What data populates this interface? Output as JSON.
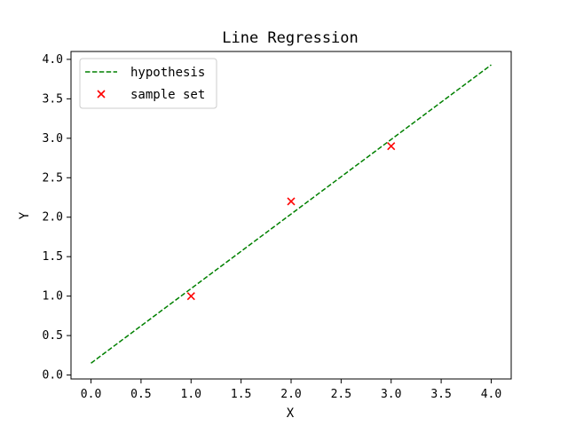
{
  "chart_data": {
    "type": "line",
    "title": "Line Regression",
    "xlabel": "X",
    "ylabel": "Y",
    "xlim": [
      -0.2,
      4.2
    ],
    "ylim": [
      -0.05,
      4.1
    ],
    "x_ticks": [
      0.0,
      0.5,
      1.0,
      1.5,
      2.0,
      2.5,
      3.0,
      3.5,
      4.0
    ],
    "x_tick_labels": [
      "0.0",
      "0.5",
      "1.0",
      "1.5",
      "2.0",
      "2.5",
      "3.0",
      "3.5",
      "4.0"
    ],
    "y_ticks": [
      0.0,
      0.5,
      1.0,
      1.5,
      2.0,
      2.5,
      3.0,
      3.5,
      4.0
    ],
    "y_tick_labels": [
      "0.0",
      "0.5",
      "1.0",
      "1.5",
      "2.0",
      "2.5",
      "3.0",
      "3.5",
      "4.0"
    ],
    "grid": false,
    "legend_position": "upper-left",
    "series": [
      {
        "name": "hypothesis",
        "type": "line",
        "style": "dashed",
        "color": "#008000",
        "x": [
          0.0,
          4.0
        ],
        "y": [
          0.15,
          3.93
        ]
      },
      {
        "name": "sample set",
        "type": "scatter",
        "marker": "x",
        "color": "#ff0000",
        "x": [
          1.0,
          2.0,
          3.0
        ],
        "y": [
          1.0,
          2.2,
          2.9
        ]
      }
    ]
  }
}
